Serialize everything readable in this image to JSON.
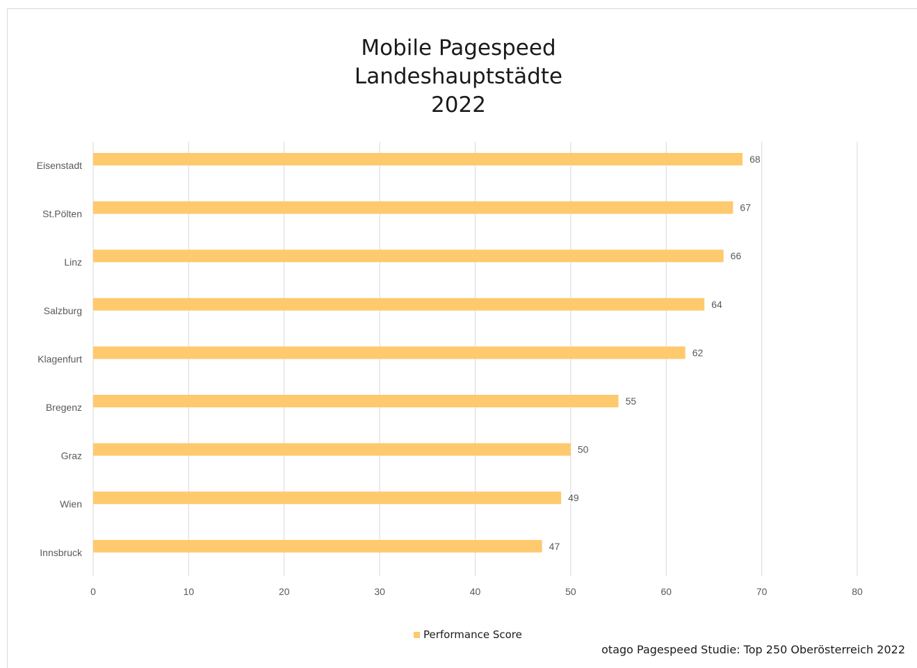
{
  "chart_data": {
    "type": "bar",
    "orientation": "horizontal",
    "title_lines": [
      "Mobile Pagespeed",
      "Landeshauptstädte",
      "2022"
    ],
    "categories": [
      "Eisenstadt",
      "St.Pölten",
      "Linz",
      "Salzburg",
      "Klagenfurt",
      "Bregenz",
      "Graz",
      "Wien",
      "Innsbruck"
    ],
    "series": [
      {
        "name": "Performance Score",
        "values": [
          68,
          67,
          66,
          64,
          62,
          55,
          50,
          49,
          47
        ],
        "color": "#ffc96e"
      }
    ],
    "xlim": [
      0,
      80
    ],
    "xticks": [
      0,
      10,
      20,
      30,
      40,
      50,
      60,
      70,
      80
    ],
    "data_labels": true,
    "grid": "vertical",
    "legend_position": "bottom",
    "source": "otago Pagespeed Studie: Top 250 Oberösterreich 2022"
  }
}
